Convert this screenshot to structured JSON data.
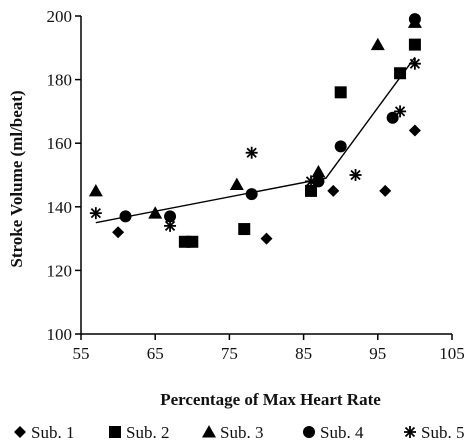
{
  "chart_data": {
    "type": "scatter",
    "title": "",
    "xlabel": "Percentage of Max Heart Rate",
    "ylabel": "Stroke Volume (ml/beat)",
    "xlim": [
      55,
      105
    ],
    "ylim": [
      100,
      200
    ],
    "xticks": [
      "55",
      "65",
      "75",
      "85",
      "95",
      "105"
    ],
    "yticks": [
      "100",
      "120",
      "140",
      "160",
      "180",
      "200"
    ],
    "grid": false,
    "legend_position": "bottom",
    "series": [
      {
        "name": "Sub. 1",
        "marker": "diamond",
        "points": [
          [
            60,
            132
          ],
          [
            80,
            130
          ],
          [
            89,
            145
          ],
          [
            96,
            145
          ],
          [
            100,
            164
          ]
        ]
      },
      {
        "name": "Sub. 2",
        "marker": "square",
        "points": [
          [
            69,
            129
          ],
          [
            70,
            129
          ],
          [
            77,
            133
          ],
          [
            86,
            145
          ],
          [
            90,
            176
          ],
          [
            98,
            182
          ],
          [
            100,
            191
          ]
        ]
      },
      {
        "name": "Sub. 3",
        "marker": "triangle",
        "points": [
          [
            57,
            145
          ],
          [
            65,
            138
          ],
          [
            76,
            147
          ],
          [
            87,
            151
          ],
          [
            95,
            191
          ],
          [
            100,
            198
          ]
        ]
      },
      {
        "name": "Sub. 4",
        "marker": "circle",
        "points": [
          [
            61,
            137
          ],
          [
            67,
            137
          ],
          [
            78,
            144
          ],
          [
            87,
            148
          ],
          [
            90,
            159
          ],
          [
            97,
            168
          ],
          [
            100,
            199
          ]
        ]
      },
      {
        "name": "Sub. 5",
        "marker": "asterisk",
        "points": [
          [
            57,
            138
          ],
          [
            67,
            134
          ],
          [
            78,
            157
          ],
          [
            86,
            148
          ],
          [
            92,
            150
          ],
          [
            98,
            170
          ],
          [
            100,
            185
          ]
        ]
      }
    ],
    "trend_line": [
      [
        57,
        135
      ],
      [
        88,
        149
      ],
      [
        100,
        187
      ]
    ]
  }
}
